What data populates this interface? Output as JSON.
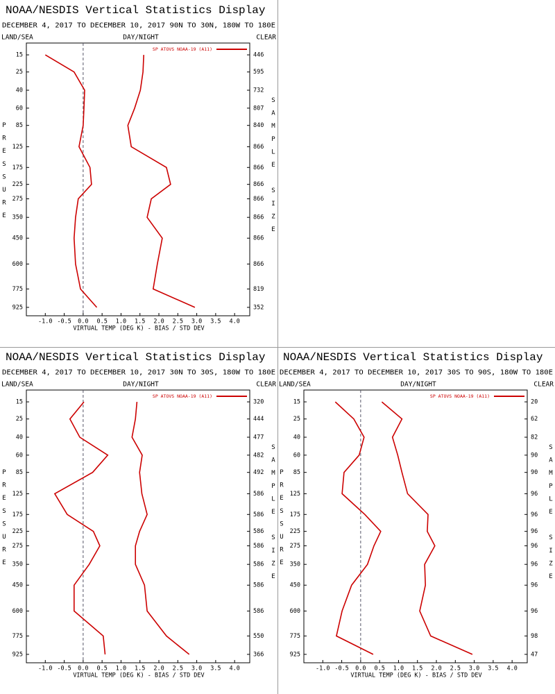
{
  "chart_data": [
    {
      "type": "line",
      "title": "NOAA/NESDIS Vertical Statistics Display",
      "subtitle": "DECEMBER 4, 2017 TO DECEMBER 10, 2017 90N TO 30N, 180W TO 180E",
      "header_left": "LAND/SEA",
      "header_center": "DAY/NIGHT",
      "header_right": "CLEAR",
      "ylabel": "PRESSURE",
      "y2label": "SAMPLE SIZE",
      "xlabel": "VIRTUAL TEMP (DEG K) - BIAS / STD DEV",
      "legend": "SP ATOVS NOAA-19 (A11)",
      "levels": [
        15,
        25,
        40,
        60,
        85,
        125,
        175,
        225,
        275,
        350,
        450,
        600,
        775,
        925
      ],
      "sample_sizes": [
        446,
        595,
        732,
        807,
        840,
        866,
        866,
        866,
        866,
        866,
        866,
        866,
        819,
        352
      ],
      "series": [
        {
          "color": "#cc0000",
          "values": [
            -1.0,
            -0.24,
            0.04,
            0.02,
            0.0,
            -0.11,
            0.18,
            0.22,
            -0.13,
            -0.2,
            -0.24,
            -0.2,
            -0.07,
            0.36
          ]
        },
        {
          "color": "#cc0000",
          "values": [
            1.6,
            1.58,
            1.51,
            1.36,
            1.18,
            1.27,
            2.2,
            2.31,
            1.8,
            1.69,
            2.09,
            1.96,
            1.85,
            2.95
          ]
        }
      ],
      "xlim": [
        -1.5,
        4.4
      ],
      "xticks": [
        {
          "value": -1,
          "label": "-1.0"
        },
        -0.5,
        {
          "value": 0,
          "label": "0.0"
        },
        0.5,
        {
          "value": 1,
          "label": "1.0"
        },
        1.5,
        {
          "value": 2,
          "label": "2.0"
        },
        2.5,
        {
          "value": 3,
          "label": "3.0"
        },
        3.5,
        {
          "value": 4,
          "label": "4.0"
        }
      ],
      "ylim": [
        1000,
        10
      ],
      "yscale": "power",
      "yexponent": 0.3,
      "yticks": [
        15,
        25,
        40,
        60,
        85,
        125,
        175,
        225,
        275,
        350,
        450,
        600,
        775,
        925
      ],
      "vline": 0
    },
    {
      "type": "line",
      "title": "NOAA/NESDIS Vertical Statistics Display",
      "subtitle": "DECEMBER 4, 2017 TO DECEMBER 10, 2017 30N TO 30S, 180W TO 180E",
      "header_left": "LAND/SEA",
      "header_center": "DAY/NIGHT",
      "header_right": "CLEAR",
      "ylabel": "PRESSURE",
      "y2label": "SAMPLE SIZE",
      "xlabel": "VIRTUAL TEMP (DEG K) - BIAS / STD DEV",
      "legend": "SP ATOVS NOAA-19 (A11)",
      "levels": [
        15,
        25,
        40,
        60,
        85,
        125,
        175,
        225,
        275,
        350,
        450,
        600,
        775,
        925
      ],
      "sample_sizes": [
        320,
        444,
        477,
        482,
        492,
        586,
        586,
        586,
        586,
        586,
        586,
        586,
        550,
        366
      ],
      "series": [
        {
          "color": "#cc0000",
          "values": [
            0.02,
            -0.35,
            -0.09,
            0.65,
            0.25,
            -0.75,
            -0.42,
            0.27,
            0.44,
            0.16,
            -0.24,
            -0.24,
            0.53,
            0.58
          ]
        },
        {
          "color": "#cc0000",
          "values": [
            1.42,
            1.38,
            1.29,
            1.56,
            1.49,
            1.55,
            1.69,
            1.49,
            1.38,
            1.38,
            1.62,
            1.69,
            2.2,
            2.8
          ]
        }
      ],
      "xlim": [
        -1.5,
        4.4
      ],
      "xticks": [
        {
          "value": -1,
          "label": "-1.0"
        },
        -0.5,
        {
          "value": 0,
          "label": "0.0"
        },
        0.5,
        {
          "value": 1,
          "label": "1.0"
        },
        1.5,
        {
          "value": 2,
          "label": "2.0"
        },
        2.5,
        {
          "value": 3,
          "label": "3.0"
        },
        3.5,
        {
          "value": 4,
          "label": "4.0"
        }
      ],
      "ylim": [
        1000,
        10
      ],
      "yscale": "power",
      "yexponent": 0.3,
      "yticks": [
        15,
        25,
        40,
        60,
        85,
        125,
        175,
        225,
        275,
        350,
        450,
        600,
        775,
        925
      ],
      "vline": 0
    },
    {
      "type": "line",
      "title": "NOAA/NESDIS Vertical Statistics Display",
      "subtitle": "DECEMBER 4, 2017 TO DECEMBER 10, 2017 30S TO 90S, 180W TO 180E",
      "header_left": "LAND/SEA",
      "header_center": "DAY/NIGHT",
      "header_right": "CLEAR",
      "ylabel": "PRESSURE",
      "y2label": "SAMPLE SIZE",
      "xlabel": "VIRTUAL TEMP (DEG K) - BIAS / STD DEV",
      "legend": "SP ATOVS NOAA-19 (A11)",
      "levels": [
        15,
        25,
        40,
        60,
        85,
        125,
        175,
        225,
        275,
        350,
        450,
        600,
        775,
        925
      ],
      "sample_sizes": [
        20,
        62,
        82,
        90,
        90,
        96,
        96,
        96,
        96,
        96,
        96,
        96,
        98,
        47
      ],
      "series": [
        {
          "color": "#cc0000",
          "values": [
            -0.67,
            -0.18,
            0.09,
            -0.04,
            -0.44,
            -0.49,
            0.11,
            0.53,
            0.35,
            0.18,
            -0.24,
            -0.49,
            -0.64,
            0.33
          ]
        },
        {
          "color": "#cc0000",
          "values": [
            0.56,
            1.09,
            0.84,
            0.98,
            1.09,
            1.24,
            1.78,
            1.76,
            1.96,
            1.69,
            1.71,
            1.56,
            1.85,
            2.95
          ]
        }
      ],
      "xlim": [
        -1.5,
        4.4
      ],
      "xticks": [
        {
          "value": -1,
          "label": "-1.0"
        },
        -0.5,
        {
          "value": 0,
          "label": "0.0"
        },
        0.5,
        {
          "value": 1,
          "label": "1.0"
        },
        1.5,
        {
          "value": 2,
          "label": "2.0"
        },
        2.5,
        {
          "value": 3,
          "label": "3.0"
        },
        3.5,
        {
          "value": 4,
          "label": "4.0"
        }
      ],
      "ylim": [
        1000,
        10
      ],
      "yscale": "power",
      "yexponent": 0.3,
      "yticks": [
        15,
        25,
        40,
        60,
        85,
        125,
        175,
        225,
        275,
        350,
        450,
        600,
        775,
        925
      ],
      "vline": 0
    }
  ]
}
